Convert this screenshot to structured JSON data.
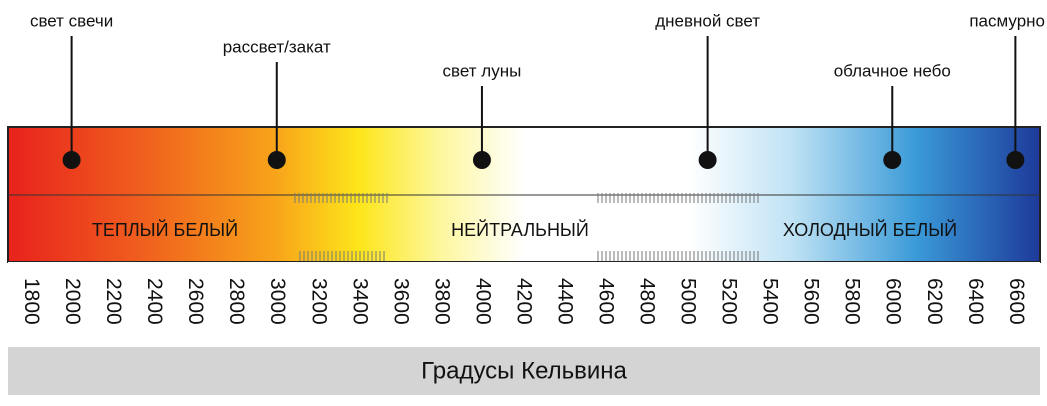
{
  "chart_data": {
    "type": "scale",
    "markers": [
      {
        "label": "свет свечи",
        "value": 2000
      },
      {
        "label": "рассвет/закат",
        "value": 3000
      },
      {
        "label": "свет луны",
        "value": 4000
      },
      {
        "label": "дневной свет",
        "value": 5100
      },
      {
        "label": "облачное небо",
        "value": 6000
      },
      {
        "label": "пасмурно",
        "value": 6600
      }
    ],
    "zones": [
      "ТЕПЛЫЙ БЕЛЫЙ",
      "НЕЙТРАЛЬНЫЙ",
      "ХОЛОДНЫЙ БЕЛЫЙ"
    ],
    "xlim": [
      1690,
      6720
    ],
    "xticks": [
      1800,
      2000,
      2200,
      2400,
      2600,
      2800,
      3000,
      3200,
      3400,
      3600,
      3800,
      4000,
      4200,
      4400,
      4600,
      4800,
      5000,
      5200,
      5400,
      5600,
      5800,
      6000,
      6200,
      6400,
      6600
    ],
    "xlabel": "Градусы Кельвина",
    "marker_color": "#111111"
  }
}
